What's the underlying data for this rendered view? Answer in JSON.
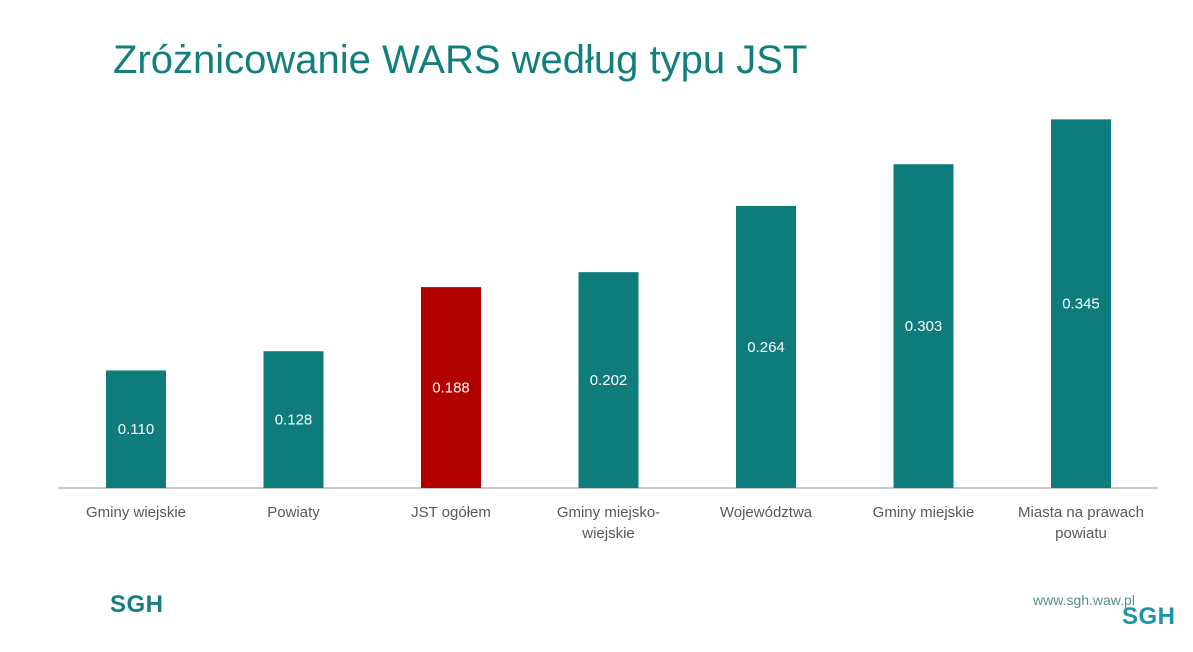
{
  "slide": {
    "title": "Zróżnicowanie WARS według typu JST"
  },
  "footer": {
    "logo_left": "SGH",
    "url": "www.sgh.waw.pl",
    "logo_right": "SGH"
  },
  "colors": {
    "bar": "#0e7c7b",
    "highlight": "#b00000",
    "axis": "#c8c8c8"
  },
  "chart_data": {
    "type": "bar",
    "categories": [
      [
        "Gminy wiejskie"
      ],
      [
        "Powiaty"
      ],
      [
        "JST ogółem"
      ],
      [
        "Gminy miejsko-",
        "wiejskie"
      ],
      [
        "Województwa"
      ],
      [
        "Gminy miejskie"
      ],
      [
        "Miasta na prawach",
        "powiatu"
      ]
    ],
    "values": [
      0.11,
      0.128,
      0.188,
      0.202,
      0.264,
      0.303,
      0.345
    ],
    "value_labels": [
      "0.110",
      "0.128",
      "0.188",
      "0.202",
      "0.264",
      "0.303",
      "0.345"
    ],
    "highlight_index": 2,
    "ylim": [
      0,
      0.35
    ],
    "grid": false,
    "legend": "none"
  }
}
